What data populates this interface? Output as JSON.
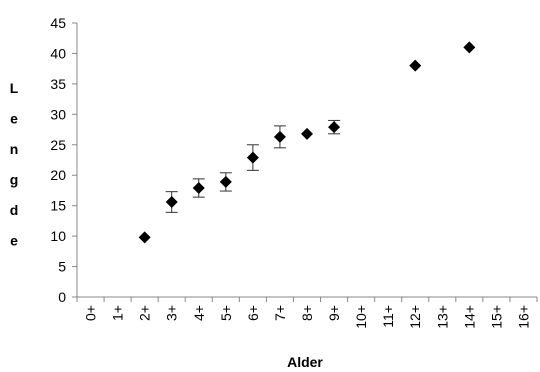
{
  "chart_data": {
    "type": "scatter",
    "title": "",
    "xlabel": "Alder",
    "ylabel": "Lengde",
    "categories": [
      "0+",
      "1+",
      "2+",
      "3+",
      "4+",
      "5+",
      "6+",
      "7+",
      "8+",
      "9+",
      "10+",
      "11+",
      "12+",
      "13+",
      "14+",
      "15+",
      "16+"
    ],
    "yticks": [
      0,
      5,
      10,
      15,
      20,
      25,
      30,
      35,
      40,
      45
    ],
    "ylim": [
      0,
      45
    ],
    "grid": false,
    "legend": "none",
    "series": [
      {
        "marker": "diamond",
        "color": "#000000",
        "points": [
          {
            "x": "2+",
            "y": 9.8
          },
          {
            "x": "3+",
            "y": 15.6,
            "err": 1.7
          },
          {
            "x": "4+",
            "y": 17.9,
            "err": 1.5
          },
          {
            "x": "5+",
            "y": 18.9,
            "err": 1.5
          },
          {
            "x": "6+",
            "y": 22.9,
            "err": 2.1
          },
          {
            "x": "7+",
            "y": 26.3,
            "err": 1.8
          },
          {
            "x": "8+",
            "y": 26.8
          },
          {
            "x": "9+",
            "y": 27.9,
            "err": 1.1
          },
          {
            "x": "12+",
            "y": 38.0
          },
          {
            "x": "14+",
            "y": 41.0
          }
        ]
      }
    ]
  }
}
